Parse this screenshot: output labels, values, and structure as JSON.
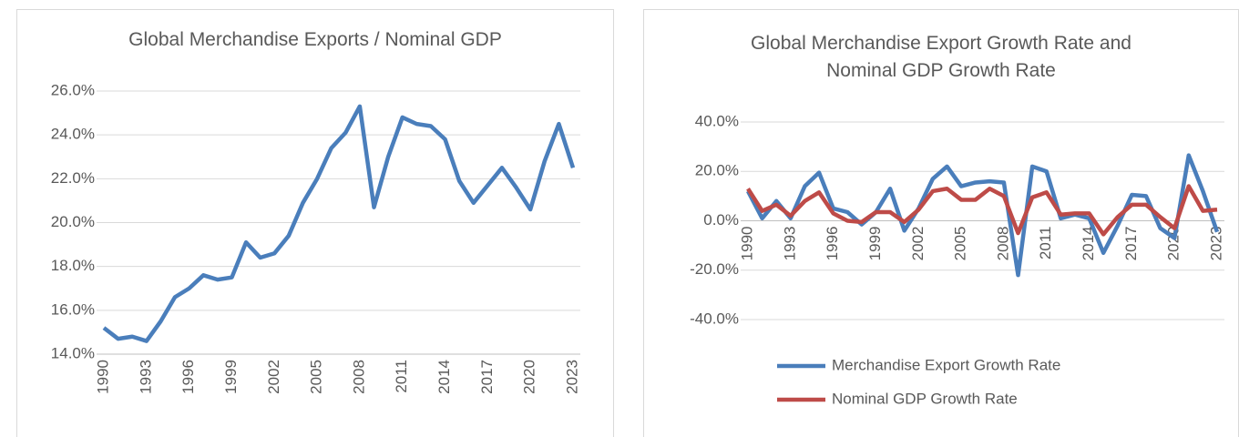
{
  "chart_data": [
    {
      "type": "line",
      "title": "Global Merchandise Exports / Nominal GDP",
      "x": [
        1990,
        1991,
        1992,
        1993,
        1994,
        1995,
        1996,
        1997,
        1998,
        1999,
        2000,
        2001,
        2002,
        2003,
        2004,
        2005,
        2006,
        2007,
        2008,
        2009,
        2010,
        2011,
        2012,
        2013,
        2014,
        2015,
        2016,
        2017,
        2018,
        2019,
        2020,
        2021,
        2022,
        2023
      ],
      "values": [
        15.2,
        14.7,
        14.8,
        14.6,
        15.5,
        16.6,
        17.0,
        17.6,
        17.4,
        17.5,
        19.1,
        18.4,
        18.6,
        19.4,
        20.9,
        22.0,
        23.4,
        24.1,
        25.3,
        20.7,
        23.0,
        24.8,
        24.5,
        24.4,
        23.8,
        21.9,
        20.9,
        21.7,
        22.5,
        21.6,
        20.6,
        22.8,
        24.5,
        22.5
      ],
      "color": "#4a7ebb",
      "xlim": [
        1990,
        2023
      ],
      "xticks": [
        1990,
        1993,
        1996,
        1999,
        2002,
        2005,
        2008,
        2011,
        2014,
        2017,
        2020,
        2023
      ],
      "ylim": [
        14,
        26
      ],
      "yticks": [
        {
          "value": 14,
          "label": "14.0%"
        },
        {
          "value": 16,
          "label": "16.0%"
        },
        {
          "value": 18,
          "label": "18.0%"
        },
        {
          "value": 20,
          "label": "20.0%"
        },
        {
          "value": 22,
          "label": "22.0%"
        },
        {
          "value": 24,
          "label": "24.0%"
        },
        {
          "value": 26,
          "label": "26.0%"
        }
      ],
      "grid": true
    },
    {
      "type": "line",
      "title": "Global Merchandise Export Growth Rate and Nominal GDP Growth Rate",
      "x": [
        1990,
        1991,
        1992,
        1993,
        1994,
        1995,
        1996,
        1997,
        1998,
        1999,
        2000,
        2001,
        2002,
        2003,
        2004,
        2005,
        2006,
        2007,
        2008,
        2009,
        2010,
        2011,
        2012,
        2013,
        2014,
        2015,
        2016,
        2017,
        2018,
        2019,
        2020,
        2021,
        2022,
        2023
      ],
      "series": [
        {
          "name": "Merchandise Export Growth Rate",
          "color": "#4a7ebb",
          "values": [
            12,
            1,
            8,
            1,
            14,
            19.5,
            5,
            3.5,
            -1.5,
            3.5,
            13,
            -4,
            5,
            17,
            22,
            14,
            15.5,
            16,
            15.5,
            -22,
            22,
            20,
            1,
            2.5,
            1,
            -13,
            -2,
            10.5,
            10,
            -3,
            -7,
            26.5,
            12,
            -4.5
          ]
        },
        {
          "name": "Nominal GDP Growth Rate",
          "color": "#be4b48",
          "values": [
            13,
            4,
            6.5,
            2,
            8,
            11.5,
            3,
            0,
            -0.5,
            3.5,
            3.5,
            -0.5,
            4.5,
            12,
            13,
            8.5,
            8.5,
            13,
            10,
            -5,
            9.5,
            11.5,
            2.5,
            3,
            3,
            -5.5,
            1.5,
            6.5,
            6.5,
            1.5,
            -3,
            14,
            4,
            4.5
          ]
        }
      ],
      "xlim": [
        1990,
        2023
      ],
      "xticks": [
        1990,
        1993,
        1996,
        1999,
        2002,
        2005,
        2008,
        2011,
        2014,
        2017,
        2020,
        2023
      ],
      "ylim": [
        -40,
        40
      ],
      "yticks": [
        {
          "value": -40,
          "label": "-40.0%"
        },
        {
          "value": -20,
          "label": "-20.0%"
        },
        {
          "value": 0,
          "label": "0.0%"
        },
        {
          "value": 20,
          "label": "20.0%"
        },
        {
          "value": 40,
          "label": "40.0%"
        }
      ],
      "grid": true,
      "legend": "bottom"
    }
  ]
}
